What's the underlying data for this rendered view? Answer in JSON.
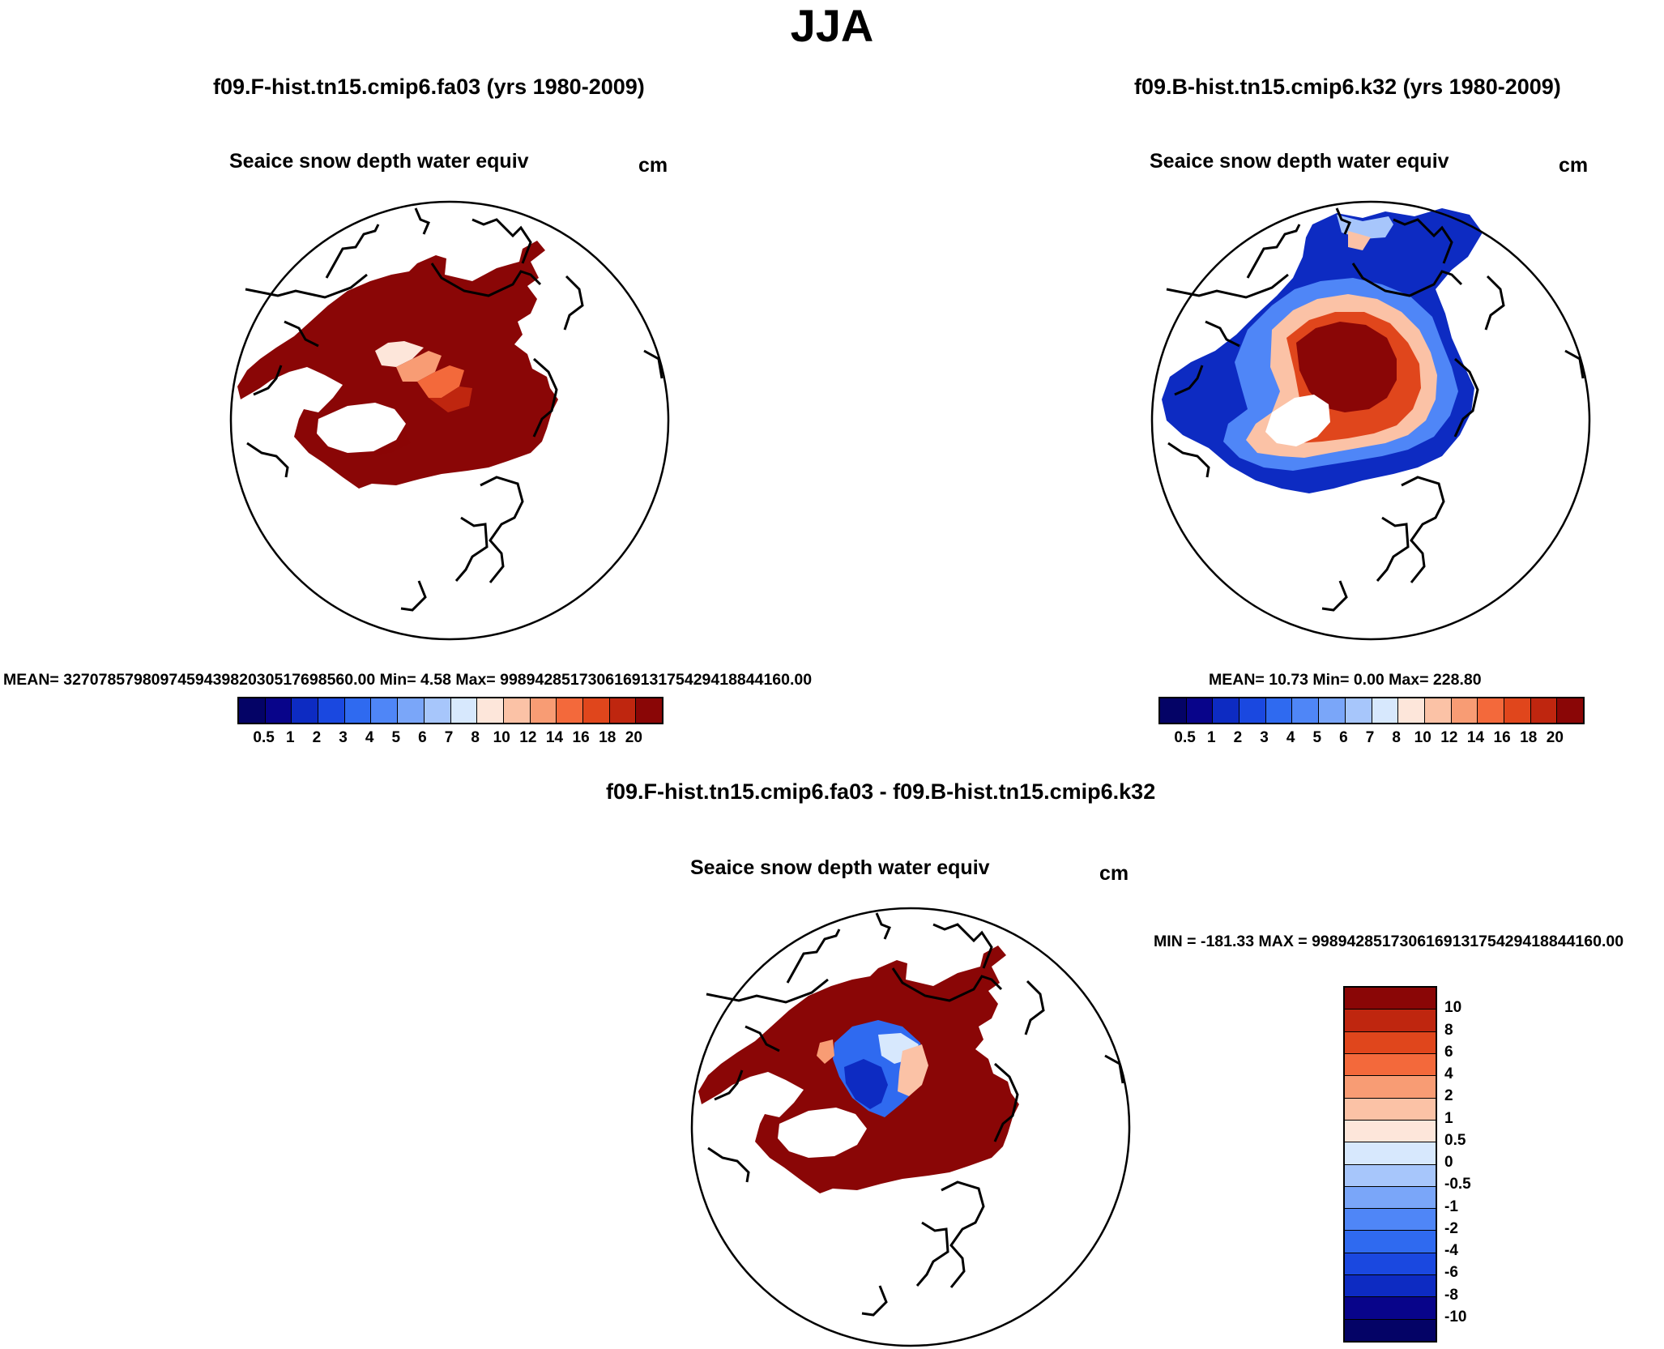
{
  "title": "JJA",
  "panels": {
    "control": {
      "case": "f09.F-hist.tn15.cmip6.fa03 (yrs 1980-2009)",
      "variable": "Seaice snow depth water equiv",
      "units": "cm",
      "stats": "MEAN= 327078579809745943982030517698560.00  Min=   4.58  Max= 998942851730616913175429418844160.00"
    },
    "test": {
      "case": "f09.B-hist.tn15.cmip6.k32 (yrs 1980-2009)",
      "variable": "Seaice snow depth water equiv",
      "units": "cm",
      "stats": "MEAN=  10.73  Min=   0.00  Max= 228.80"
    },
    "diff": {
      "case": "f09.F-hist.tn15.cmip6.fa03 - f09.B-hist.tn15.cmip6.k32",
      "variable": "Seaice snow depth water equiv",
      "units": "cm",
      "stats": "MIN = -181.33 MAX = 998942851730616913175429418844160.00"
    }
  },
  "colorbar_abs": {
    "labels": [
      "0.5",
      "1",
      "2",
      "3",
      "4",
      "5",
      "6",
      "7",
      "8",
      "10",
      "12",
      "14",
      "16",
      "18",
      "20"
    ],
    "colors": [
      "#08048a",
      "#0d2bc2",
      "#1a48e0",
      "#2f6af0",
      "#4f86f7",
      "#7aa6f9",
      "#a7c6fb",
      "#d7e8fd",
      "#fde6da",
      "#fbc2a6",
      "#f89c74",
      "#f3693b",
      "#e0461c",
      "#bf260f",
      "#8a0606"
    ]
  },
  "colorbar_diff": {
    "labels": [
      "10",
      "8",
      "6",
      "4",
      "2",
      "1",
      "0.5",
      "0",
      "-0.5",
      "-1",
      "-2",
      "-4",
      "-6",
      "-8",
      "-10"
    ],
    "colors": [
      "#8a0606",
      "#bf260f",
      "#e0461c",
      "#f3693b",
      "#f89c74",
      "#fbc2a6",
      "#fde6da",
      "#d7e8fd",
      "#a7c6fb",
      "#7aa6f9",
      "#4f86f7",
      "#2f6af0",
      "#1a48e0",
      "#0d2bc2",
      "#08048a",
      "#040366"
    ]
  },
  "icons": {
    "map_projection": "north-polar-stereographic",
    "coastlines": "coastline-outline"
  }
}
